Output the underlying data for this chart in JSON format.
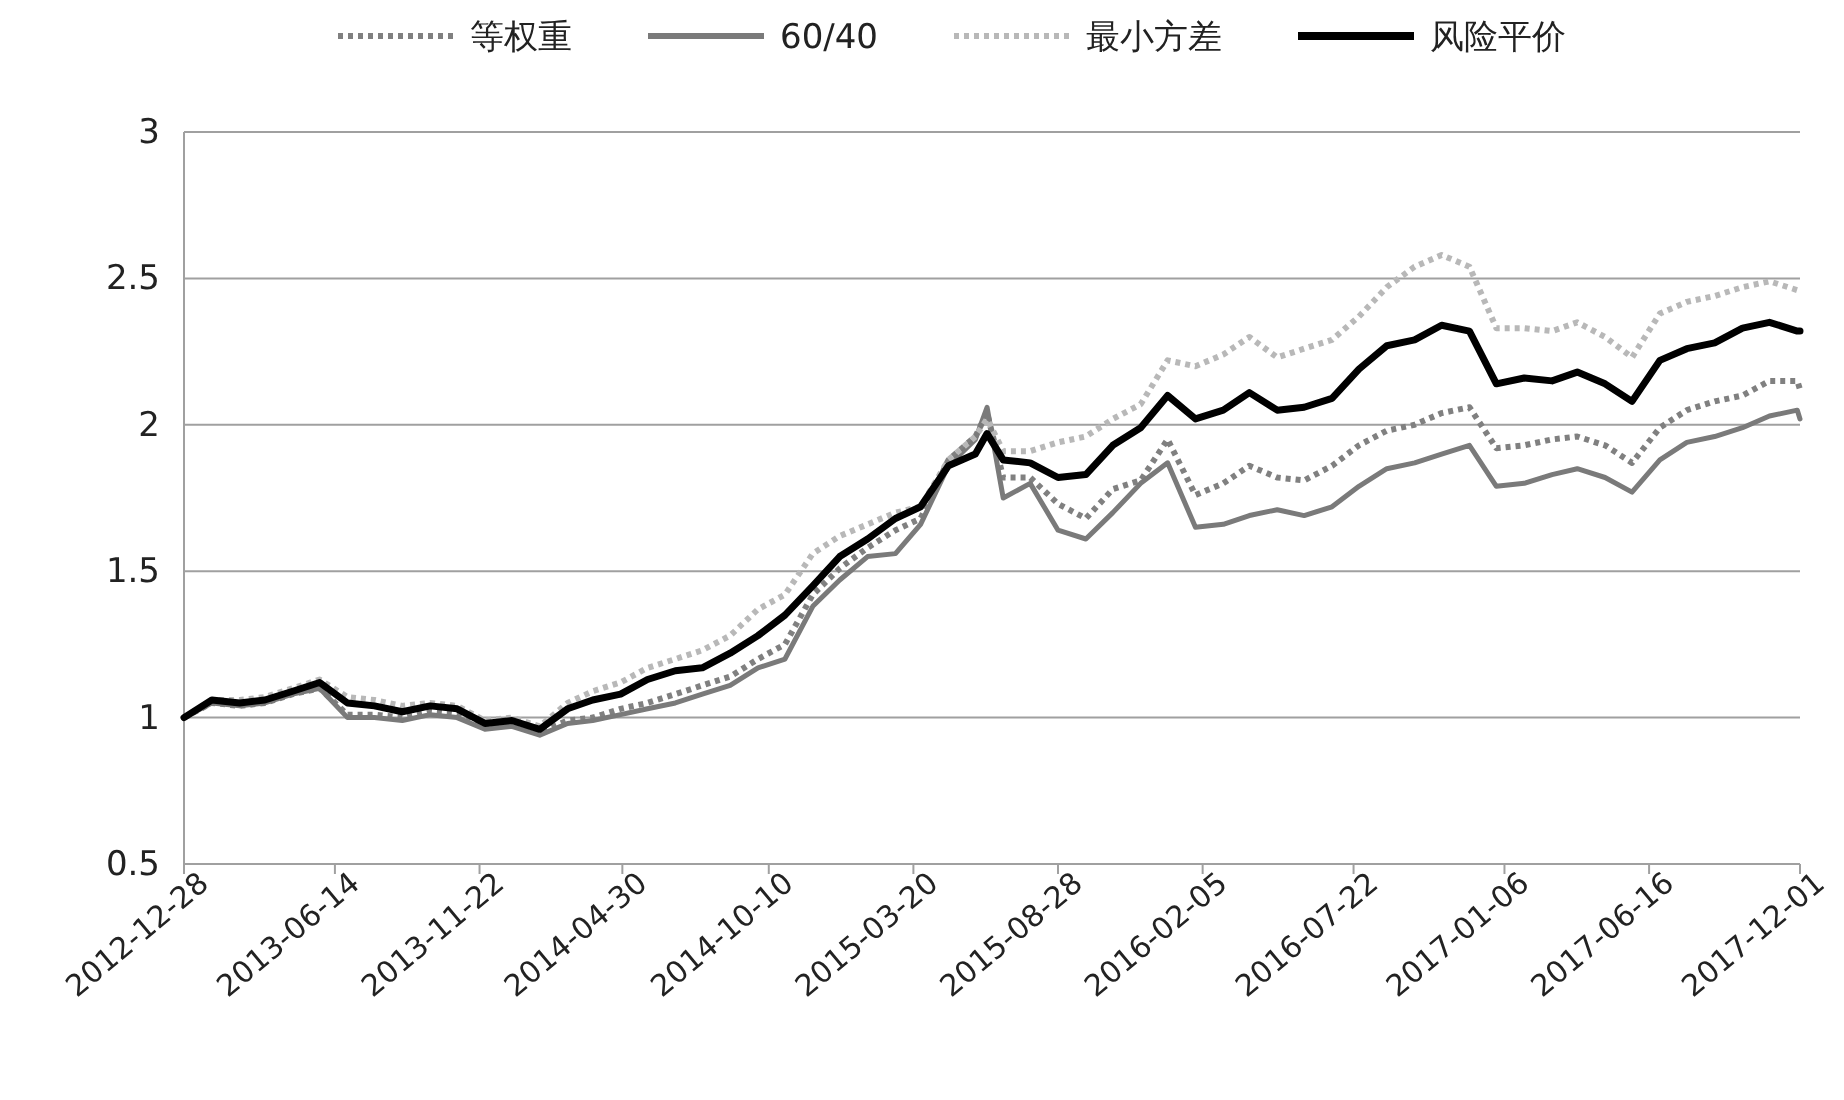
{
  "chart_data": {
    "type": "line",
    "x": [
      "2012-12-28",
      "2013-01-28",
      "2013-02-28",
      "2013-03-28",
      "2013-04-28",
      "2013-05-28",
      "2013-06-28",
      "2013-07-28",
      "2013-08-28",
      "2013-09-28",
      "2013-10-28",
      "2013-11-28",
      "2013-12-28",
      "2014-01-28",
      "2014-02-28",
      "2014-03-28",
      "2014-04-28",
      "2014-05-28",
      "2014-06-28",
      "2014-07-28",
      "2014-08-28",
      "2014-09-28",
      "2014-10-28",
      "2014-11-28",
      "2014-12-28",
      "2015-01-28",
      "2015-02-28",
      "2015-03-28",
      "2015-04-28",
      "2015-05-28",
      "2015-06-10",
      "2015-06-28",
      "2015-07-28",
      "2015-08-28",
      "2015-09-28",
      "2015-10-28",
      "2015-11-28",
      "2015-12-28",
      "2016-01-28",
      "2016-02-28",
      "2016-03-28",
      "2016-04-28",
      "2016-05-28",
      "2016-06-28",
      "2016-07-28",
      "2016-08-28",
      "2016-09-28",
      "2016-10-28",
      "2016-11-28",
      "2016-12-28",
      "2017-01-28",
      "2017-02-28",
      "2017-03-28",
      "2017-04-28",
      "2017-05-28",
      "2017-06-28",
      "2017-07-28",
      "2017-08-28",
      "2017-09-28",
      "2017-10-28",
      "2017-11-28",
      "2017-12-01"
    ],
    "series": [
      {
        "name": "等权重",
        "color": "#808080",
        "line_style": "dotted",
        "values": [
          1.0,
          1.05,
          1.04,
          1.05,
          1.08,
          1.1,
          1.01,
          1.01,
          1.0,
          1.02,
          1.01,
          0.97,
          0.98,
          0.95,
          0.99,
          1.0,
          1.03,
          1.05,
          1.08,
          1.11,
          1.14,
          1.2,
          1.25,
          1.42,
          1.51,
          1.58,
          1.64,
          1.68,
          1.88,
          1.96,
          2.04,
          1.82,
          1.82,
          1.73,
          1.68,
          1.78,
          1.81,
          1.95,
          1.76,
          1.8,
          1.86,
          1.82,
          1.81,
          1.86,
          1.93,
          1.98,
          2.0,
          2.04,
          2.06,
          1.92,
          1.93,
          1.95,
          1.96,
          1.93,
          1.87,
          1.99,
          2.05,
          2.08,
          2.1,
          2.15,
          2.15,
          2.12
        ]
      },
      {
        "name": "60/40",
        "color": "#7a7a7a",
        "line_style": "solid",
        "values": [
          1.0,
          1.05,
          1.04,
          1.05,
          1.08,
          1.1,
          1.0,
          1.0,
          0.99,
          1.01,
          1.0,
          0.96,
          0.97,
          0.94,
          0.98,
          0.99,
          1.01,
          1.03,
          1.05,
          1.08,
          1.11,
          1.17,
          1.2,
          1.38,
          1.47,
          1.55,
          1.56,
          1.66,
          1.86,
          1.95,
          2.06,
          1.75,
          1.8,
          1.64,
          1.61,
          1.7,
          1.8,
          1.87,
          1.65,
          1.66,
          1.69,
          1.71,
          1.69,
          1.72,
          1.79,
          1.85,
          1.87,
          1.9,
          1.93,
          1.79,
          1.8,
          1.83,
          1.85,
          1.82,
          1.77,
          1.88,
          1.94,
          1.96,
          1.99,
          2.03,
          2.05,
          2.02
        ]
      },
      {
        "name": "最小方差",
        "color": "#b8b8b8",
        "line_style": "dotted",
        "values": [
          1.0,
          1.06,
          1.06,
          1.07,
          1.1,
          1.13,
          1.07,
          1.06,
          1.04,
          1.05,
          1.04,
          0.99,
          1.0,
          0.97,
          1.05,
          1.09,
          1.12,
          1.17,
          1.2,
          1.23,
          1.28,
          1.37,
          1.42,
          1.56,
          1.62,
          1.66,
          1.7,
          1.72,
          1.88,
          1.96,
          2.02,
          1.91,
          1.91,
          1.94,
          1.96,
          2.02,
          2.07,
          2.22,
          2.2,
          2.24,
          2.3,
          2.23,
          2.26,
          2.29,
          2.37,
          2.47,
          2.54,
          2.58,
          2.54,
          2.33,
          2.33,
          2.32,
          2.35,
          2.3,
          2.23,
          2.38,
          2.42,
          2.44,
          2.47,
          2.49,
          2.46,
          2.45
        ]
      },
      {
        "name": "风险平价",
        "color": "#000000",
        "line_style": "solid",
        "values": [
          1.0,
          1.06,
          1.05,
          1.06,
          1.09,
          1.12,
          1.05,
          1.04,
          1.02,
          1.04,
          1.03,
          0.98,
          0.99,
          0.96,
          1.03,
          1.06,
          1.08,
          1.13,
          1.16,
          1.17,
          1.22,
          1.28,
          1.35,
          1.45,
          1.55,
          1.61,
          1.68,
          1.72,
          1.86,
          1.9,
          1.97,
          1.88,
          1.87,
          1.82,
          1.83,
          1.93,
          1.99,
          2.1,
          2.02,
          2.05,
          2.11,
          2.05,
          2.06,
          2.09,
          2.19,
          2.27,
          2.29,
          2.34,
          2.32,
          2.14,
          2.16,
          2.15,
          2.18,
          2.14,
          2.08,
          2.22,
          2.26,
          2.28,
          2.33,
          2.35,
          2.32,
          2.32
        ]
      }
    ],
    "xlim": [
      "2012-12-28",
      "2017-12-01"
    ],
    "xticks": [
      {
        "value": "2012-12-28",
        "label": "2012-12-28"
      },
      {
        "value": "2013-06-14",
        "label": "2013-06-14"
      },
      {
        "value": "2013-11-22",
        "label": "2013-11-22"
      },
      {
        "value": "2014-04-30",
        "label": "2014-04-30"
      },
      {
        "value": "2014-10-10",
        "label": "2014-10-10"
      },
      {
        "value": "2015-03-20",
        "label": "2015-03-20"
      },
      {
        "value": "2015-08-28",
        "label": "2015-08-28"
      },
      {
        "value": "2016-02-05",
        "label": "2016-02-05"
      },
      {
        "value": "2016-07-22",
        "label": "2016-07-22"
      },
      {
        "value": "2017-01-06",
        "label": "2017-01-06"
      },
      {
        "value": "2017-06-16",
        "label": "2017-06-16"
      },
      {
        "value": "2017-12-01",
        "label": "2017-12-01"
      }
    ],
    "ylim": [
      0.5,
      3
    ],
    "yticks": [
      0.5,
      1,
      1.5,
      2,
      2.5,
      3
    ],
    "grid": "y",
    "legend": "top",
    "marker": "none"
  }
}
